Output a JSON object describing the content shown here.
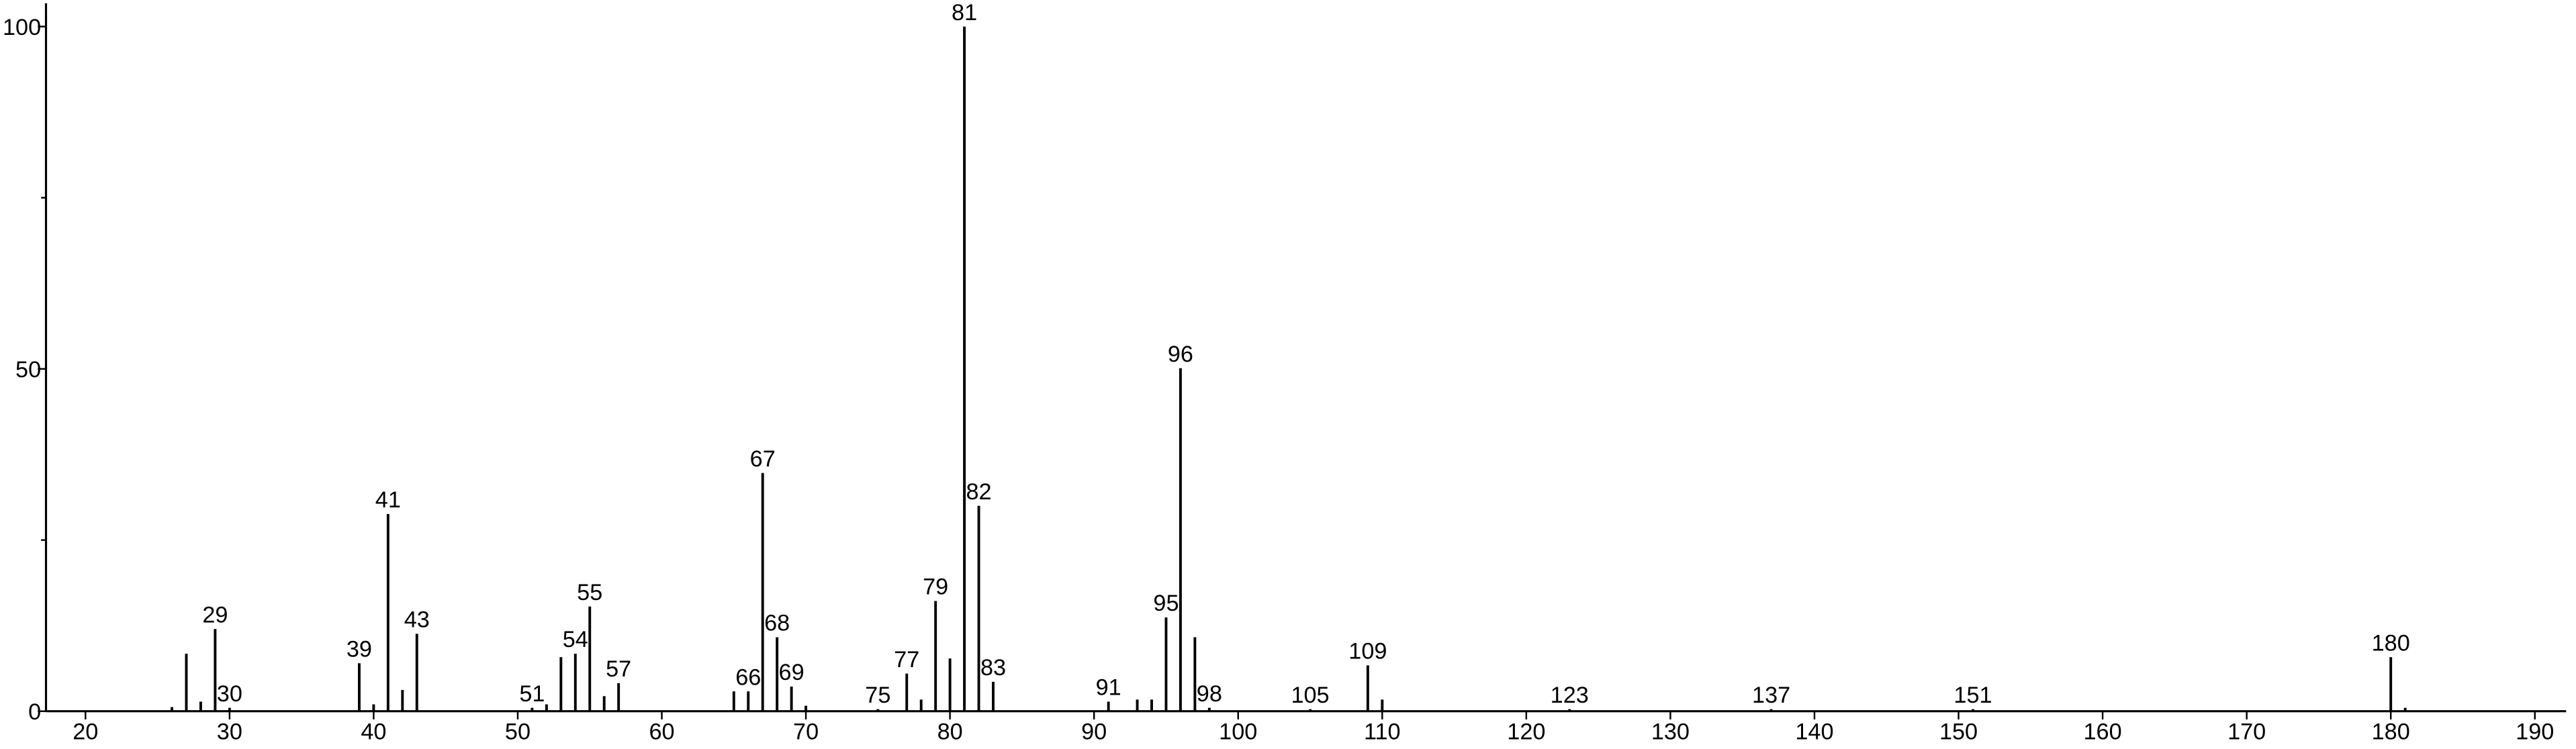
{
  "chart_data": {
    "type": "stem",
    "color": "#000000",
    "x": [
      26,
      27,
      28,
      29,
      30,
      39,
      40,
      41,
      42,
      43,
      51,
      52,
      53,
      54,
      55,
      56,
      57,
      65,
      66,
      67,
      68,
      69,
      70,
      75,
      77,
      78,
      79,
      80,
      81,
      82,
      83,
      91,
      93,
      94,
      95,
      96,
      97,
      98,
      105,
      109,
      110,
      123,
      137,
      151,
      180,
      181
    ],
    "values": [
      0.6,
      8.4,
      1.4,
      12,
      0.5,
      7,
      1,
      28.8,
      3.1,
      11.3,
      0.5,
      1,
      7.9,
      8.4,
      15.3,
      2.2,
      4.1,
      2.9,
      2.9,
      34.8,
      10.8,
      3.6,
      0.8,
      0.3,
      5.5,
      1.7,
      16.1,
      7.7,
      100,
      30,
      4.3,
      1.4,
      1.7,
      1.7,
      13.7,
      50.1,
      10.8,
      0.5,
      0.3,
      6.7,
      1.7,
      0.3,
      0.3,
      0.3,
      7.9,
      0.5
    ],
    "x_labels": [
      null,
      null,
      null,
      "29",
      "30",
      "39",
      null,
      "41",
      null,
      "43",
      "51",
      null,
      null,
      "54",
      "55",
      null,
      "57",
      null,
      "66",
      "67",
      "68",
      "69",
      null,
      "75",
      "77",
      null,
      "79",
      null,
      "81",
      "82",
      "83",
      "91",
      null,
      null,
      "95",
      "96",
      null,
      "98",
      "105",
      "109",
      null,
      "123",
      "137",
      "151",
      "180",
      null
    ],
    "xlim": [
      17.26,
      192.17
    ],
    "xticks": [
      20,
      30,
      40,
      50,
      60,
      70,
      80,
      90,
      100,
      110,
      120,
      130,
      140,
      150,
      160,
      170,
      180,
      190
    ],
    "ylim": [
      0,
      103.4
    ],
    "yticks": [
      0,
      50,
      100
    ],
    "y_minor_ticks": [
      25,
      75
    ]
  }
}
